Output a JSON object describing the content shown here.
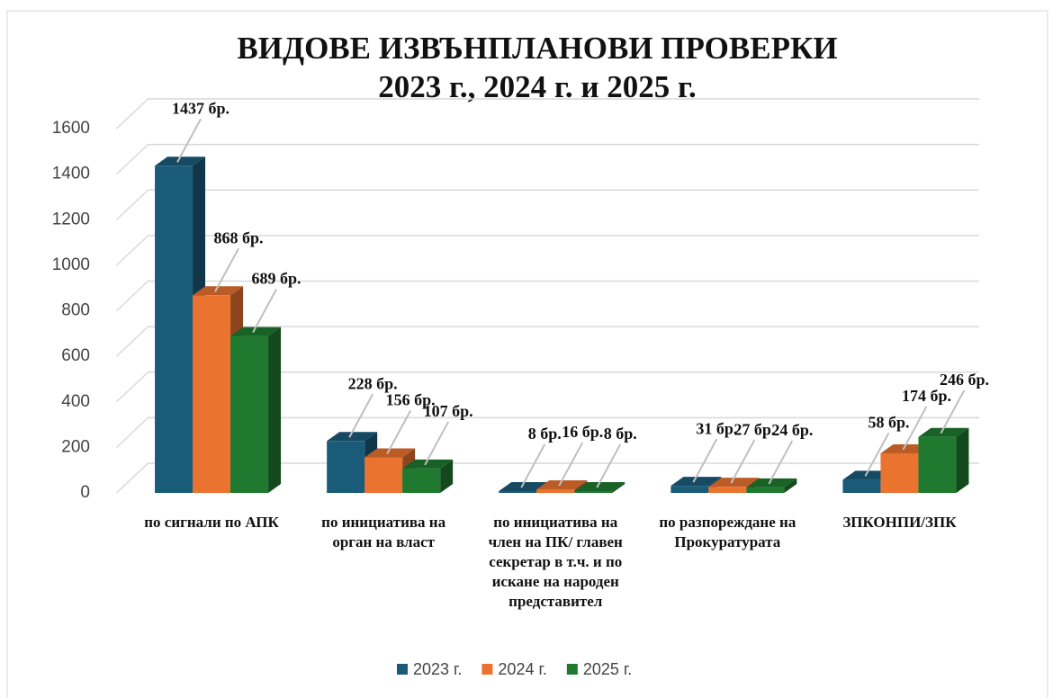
{
  "chart_data": {
    "type": "bar3d",
    "title": "ВИДОВЕ ИЗВЪНПЛАНОВИ ПРОВЕРКИ",
    "subtitle": "2023 г., 2024 г. и 2025 г.",
    "categories": [
      "по сигнали по АПК",
      "по инициатива на орган на власт",
      "по инициатива на член на ПК/ главен секретар в т.ч. и по искане на народен представител",
      "по разпореждане на Прокуратурата",
      "ЗПКОНПИ/ЗПК"
    ],
    "series": [
      {
        "name": "2023 г.",
        "color": "#1b5b7a",
        "values": [
          1437,
          228,
          8,
          31,
          58
        ],
        "value_labels": [
          "1437 бр.",
          "228 бр.",
          "8 бр.",
          "31 бр.",
          "58 бр."
        ]
      },
      {
        "name": "2024 г.",
        "color": "#ea7330",
        "values": [
          868,
          156,
          16,
          27,
          174
        ],
        "value_labels": [
          "868 бр.",
          "156 бр.",
          "16 бр.",
          "27 бр.",
          "174 бр."
        ]
      },
      {
        "name": "2025 г.",
        "color": "#1f7a30",
        "values": [
          689,
          107,
          8,
          24,
          246
        ],
        "value_labels": [
          "689 бр.",
          "107 бр.",
          "8 бр.",
          "24 бр.",
          "246 бр."
        ]
      }
    ],
    "ylim": [
      0,
      1600
    ],
    "yticks": [
      0,
      200,
      400,
      600,
      800,
      1000,
      1200,
      1400,
      1600
    ],
    "grid": true,
    "legend": "bottom"
  }
}
